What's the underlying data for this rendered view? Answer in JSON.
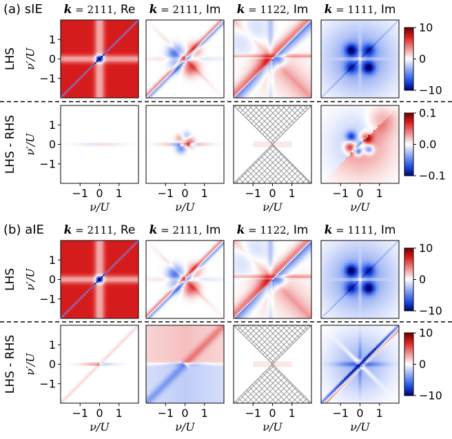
{
  "chart_data": {
    "type": "heatmap",
    "colormap": "seismic (blue-white-red)",
    "shared_axes": {
      "xlabel": "ν/U",
      "ylabel": "ν′/U",
      "xticks": [
        "−1",
        "0",
        "1"
      ],
      "yticks": [
        "1",
        "0",
        "−1"
      ],
      "xlim": [
        -2,
        2
      ],
      "ylim": [
        -2,
        2
      ]
    },
    "columns": [
      {
        "k": "2111",
        "part": "Re"
      },
      {
        "k": "2111",
        "part": "Im"
      },
      {
        "k": "1122",
        "part": "Im"
      },
      {
        "k": "1111",
        "part": "Im"
      }
    ],
    "panels": [
      {
        "label": "(a) sIE",
        "rows": [
          {
            "row_label": "LHS",
            "colorbar_ticks": [
              "10",
              "0",
              "−10"
            ],
            "vmin": -10,
            "vmax": 10,
            "maps": [
              "re2111",
              "im2111",
              "im1122",
              "im1111"
            ]
          },
          {
            "row_label": "LHS - RHS",
            "colorbar_ticks": [
              "0.1",
              "0.0",
              "−0.1"
            ],
            "vmin": -0.1,
            "vmax": 0.1,
            "maps": [
              "faint",
              "err2111",
              "hatched",
              "err1111"
            ]
          }
        ]
      },
      {
        "label": "(b) aIE",
        "rows": [
          {
            "row_label": "LHS",
            "colorbar_ticks": [
              "10",
              "0",
              "−10"
            ],
            "vmin": -10,
            "vmax": 10,
            "maps": [
              "re2111",
              "im2111",
              "im1122",
              "im1111"
            ]
          },
          {
            "row_label": "LHS - RHS",
            "colorbar_ticks": [
              "10",
              "0",
              "−10"
            ],
            "vmin": -10,
            "vmax": 10,
            "maps": [
              "faintline",
              "aerr2111",
              "hatched",
              "aerr1111"
            ]
          }
        ]
      }
    ]
  }
}
